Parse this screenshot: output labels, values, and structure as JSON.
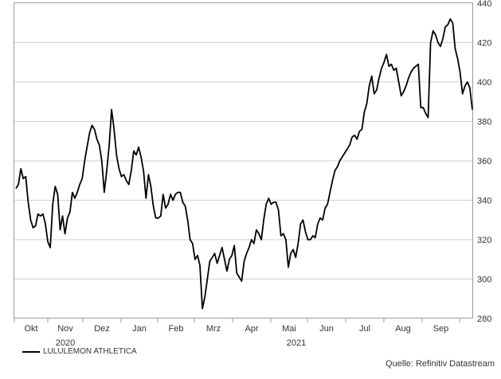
{
  "chart_data": {
    "type": "line",
    "legend_position": "bottom-left",
    "grid": "horizontal",
    "ylim": [
      280,
      440
    ],
    "y_axis_side": "right",
    "y_ticks": [
      "280",
      "300",
      "320",
      "340",
      "360",
      "380",
      "400",
      "420",
      "440"
    ],
    "x_tick_labels": [
      "Okt",
      "Nov",
      "Dez",
      "Jan",
      "Feb",
      "Mrz",
      "Apr",
      "Mai",
      "Jun",
      "Jul",
      "Aug",
      "Sep"
    ],
    "year_labels": [
      "2020",
      "2021"
    ],
    "series": [
      {
        "name": "LULULEMON ATHLETICA",
        "color": "#000000",
        "values": [
          346,
          348,
          356,
          351,
          352,
          339,
          330,
          326,
          327,
          333,
          332,
          333,
          328,
          319,
          316,
          338,
          347,
          343,
          325,
          332,
          323,
          331,
          334,
          344,
          341,
          344,
          348,
          351,
          360,
          367,
          374,
          378,
          376,
          371,
          368,
          360,
          344,
          355,
          368,
          386,
          376,
          363,
          356,
          352,
          353,
          350,
          348,
          355,
          365,
          363,
          367,
          362,
          355,
          341,
          353,
          347,
          337,
          331,
          331,
          332,
          343,
          336,
          338,
          343,
          340,
          343,
          344,
          344,
          339,
          337,
          330,
          320,
          318,
          310,
          312,
          307,
          285,
          291,
          300,
          309,
          311,
          313,
          308,
          312,
          316,
          310,
          304,
          310,
          312,
          317,
          303,
          301,
          299,
          309,
          313,
          316,
          320,
          318,
          325,
          323,
          320,
          330,
          338,
          341,
          338,
          339,
          339,
          335,
          322,
          323,
          320,
          306,
          313,
          315,
          311,
          318,
          328,
          330,
          324,
          320,
          320,
          322,
          321,
          328,
          331,
          330,
          336,
          338,
          344,
          350,
          355,
          357,
          360,
          362,
          364,
          366,
          368,
          372,
          373,
          371,
          375,
          376,
          385,
          389,
          398,
          403,
          394,
          396,
          402,
          407,
          410,
          414,
          408,
          409,
          406,
          407,
          400,
          393,
          395,
          398,
          402,
          405,
          407,
          408,
          409,
          387,
          387,
          384,
          382,
          420,
          426,
          424,
          420,
          418,
          422,
          428,
          429,
          432,
          430,
          417,
          412,
          405,
          394,
          398,
          400,
          397,
          386
        ]
      }
    ]
  },
  "legend": {
    "label": "LULULEMON ATHLETICA"
  },
  "source": {
    "text": "Quelle: Refinitiv Datastream"
  }
}
